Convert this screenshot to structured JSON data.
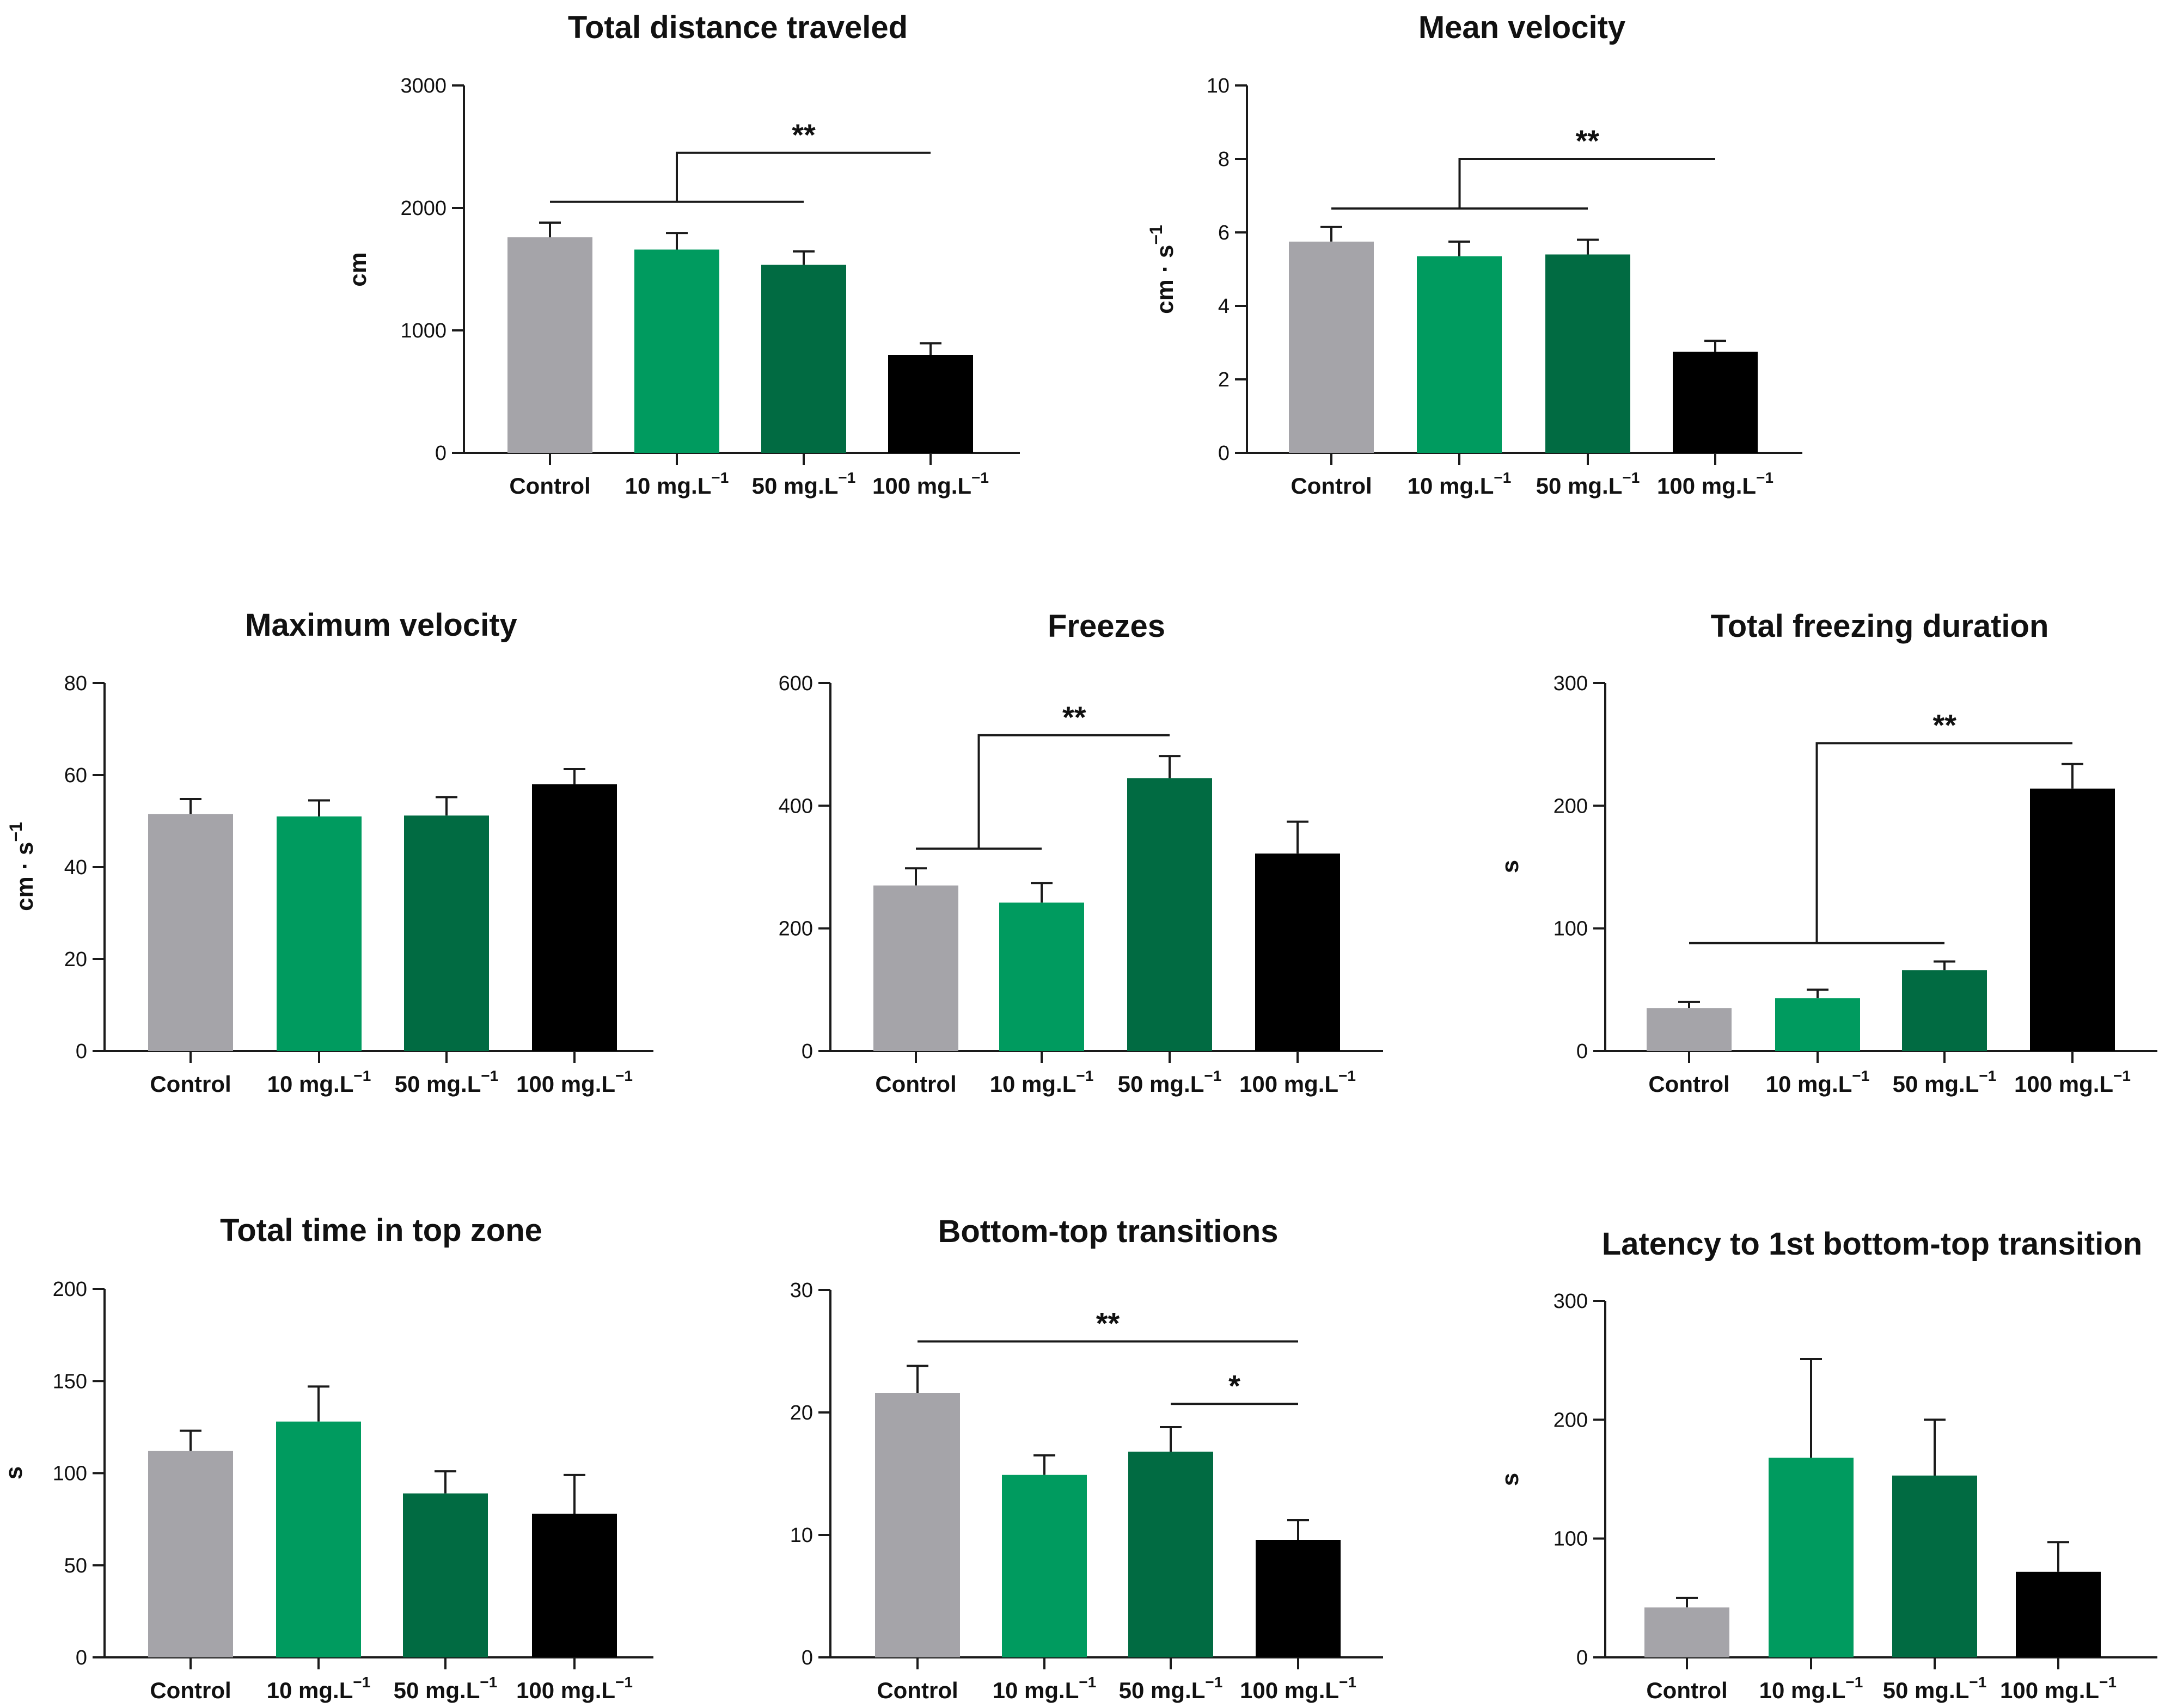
{
  "colors": {
    "control": "#a5a4a9",
    "10mg": "#009b5f",
    "50mg": "#016b42",
    "100mg": "#000000",
    "axis": "#1a1a1a"
  },
  "chart_data": [
    {
      "type": "bar",
      "title": "Total distance traveled",
      "ylabel": "cm",
      "categories": [
        "Control",
        "10 mg.L",
        "50 mg.L",
        "100 mg.L"
      ],
      "category_superscripts": [
        "",
        "−1",
        "−1",
        "−1"
      ],
      "values": [
        1760,
        1660,
        1535,
        800
      ],
      "errors": [
        120,
        135,
        110,
        95
      ],
      "ylim": [
        0,
        3000
      ],
      "yticks": [
        0,
        1000,
        2000,
        3000
      ],
      "annotations": [
        {
          "type": "bracket-group",
          "from": [
            0,
            2
          ],
          "to": 3,
          "group_y": 2050,
          "top_y": 2450,
          "label": "**"
        }
      ]
    },
    {
      "type": "bar",
      "title": "Mean velocity",
      "ylabel": "cm · s",
      "ylabel_superscript": "−1",
      "categories": [
        "Control",
        "10 mg.L",
        "50 mg.L",
        "100 mg.L"
      ],
      "category_superscripts": [
        "",
        "−1",
        "−1",
        "−1"
      ],
      "values": [
        5.75,
        5.35,
        5.4,
        2.75
      ],
      "errors": [
        0.4,
        0.4,
        0.4,
        0.3
      ],
      "ylim": [
        0,
        10
      ],
      "yticks": [
        0,
        2,
        4,
        6,
        8,
        10
      ],
      "annotations": [
        {
          "type": "bracket-group",
          "from": [
            0,
            2
          ],
          "to": 3,
          "group_y": 6.65,
          "top_y": 8.0,
          "label": "**"
        }
      ]
    },
    {
      "type": "bar",
      "title": "Maximum velocity",
      "ylabel": "cm · s",
      "ylabel_superscript": "−1",
      "categories": [
        "Control",
        "10 mg.L",
        "50 mg.L",
        "100 mg.L"
      ],
      "category_superscripts": [
        "",
        "−1",
        "−1",
        "−1"
      ],
      "values": [
        51.5,
        51,
        51.2,
        58
      ],
      "errors": [
        3.3,
        3.5,
        4.0,
        3.3
      ],
      "ylim": [
        0,
        80
      ],
      "yticks": [
        0,
        20,
        40,
        60,
        80
      ],
      "annotations": []
    },
    {
      "type": "bar",
      "title": "Freezes",
      "ylabel": "",
      "categories": [
        "Control",
        "10 mg.L",
        "50 mg.L",
        "100 mg.L"
      ],
      "category_superscripts": [
        "",
        "−1",
        "−1",
        "−1"
      ],
      "values": [
        270,
        242,
        445,
        322
      ],
      "errors": [
        28,
        32,
        36,
        52
      ],
      "ylim": [
        0,
        600
      ],
      "yticks": [
        0,
        200,
        400,
        600
      ],
      "annotations": [
        {
          "type": "bracket-group",
          "from": [
            0,
            1
          ],
          "to": 2,
          "group_y": 330,
          "top_y": 515,
          "label": "**"
        }
      ]
    },
    {
      "type": "bar",
      "title": "Total freezing duration",
      "ylabel": "s",
      "categories": [
        "Control",
        "10 mg.L",
        "50 mg.L",
        "100 mg.L"
      ],
      "category_superscripts": [
        "",
        "−1",
        "−1",
        "−1"
      ],
      "values": [
        35,
        43,
        66,
        214
      ],
      "errors": [
        5,
        7,
        7,
        20
      ],
      "ylim": [
        0,
        300
      ],
      "yticks": [
        0,
        100,
        200,
        300
      ],
      "annotations": [
        {
          "type": "bracket-group",
          "from": [
            0,
            2
          ],
          "to": 3,
          "group_y": 88,
          "top_y": 251,
          "label": "**"
        }
      ]
    },
    {
      "type": "bar",
      "title": "Total time in top zone",
      "ylabel": "s",
      "categories": [
        "Control",
        "10 mg.L",
        "50 mg.L",
        "100 mg.L"
      ],
      "category_superscripts": [
        "",
        "−1",
        "−1",
        "−1"
      ],
      "values": [
        112,
        128,
        89,
        78
      ],
      "errors": [
        11,
        19,
        12,
        21
      ],
      "ylim": [
        0,
        200
      ],
      "yticks": [
        0,
        50,
        100,
        150,
        200
      ],
      "annotations": []
    },
    {
      "type": "bar",
      "title": "Bottom-top transitions",
      "ylabel": "",
      "categories": [
        "Control",
        "10 mg.L",
        "50 mg.L",
        "100 mg.L"
      ],
      "category_superscripts": [
        "",
        "−1",
        "−1",
        "−1"
      ],
      "values": [
        21.6,
        14.9,
        16.8,
        9.6
      ],
      "errors": [
        2.2,
        1.6,
        2.0,
        1.6
      ],
      "ylim": [
        0,
        30
      ],
      "yticks": [
        0,
        10,
        20,
        30
      ],
      "annotations": [
        {
          "type": "line",
          "from": 0,
          "to": 3,
          "y": 25.8,
          "label": "**"
        },
        {
          "type": "line",
          "from": 2,
          "to": 3,
          "y": 20.7,
          "label": "*"
        }
      ]
    },
    {
      "type": "bar",
      "title": "Latency to 1st bottom-top transition",
      "ylabel": "s",
      "categories": [
        "Control",
        "10 mg.L",
        "50 mg.L",
        "100 mg.L"
      ],
      "category_superscripts": [
        "",
        "−1",
        "−1",
        "−1"
      ],
      "values": [
        42,
        168,
        153,
        72
      ],
      "errors": [
        8,
        83,
        47,
        25
      ],
      "ylim": [
        0,
        300
      ],
      "yticks": [
        0,
        100,
        200,
        300
      ],
      "annotations": []
    }
  ]
}
